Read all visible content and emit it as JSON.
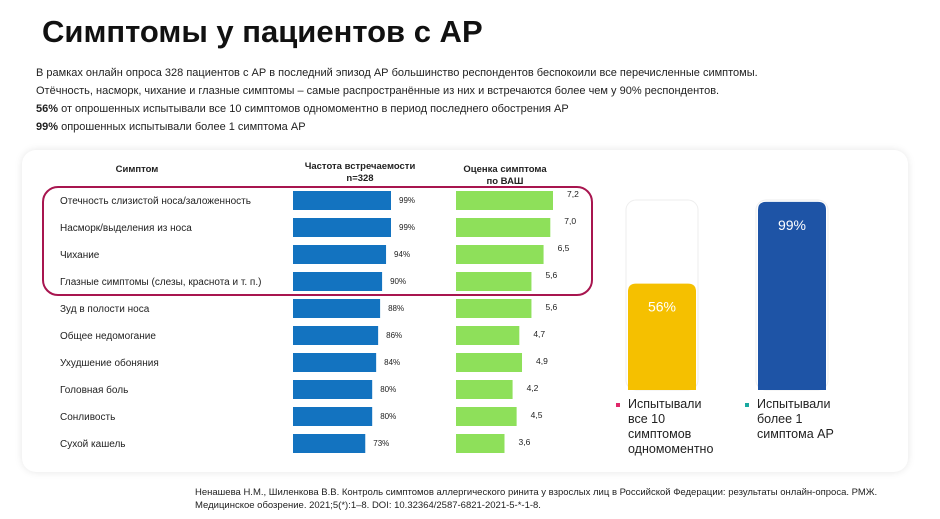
{
  "title": "Симптомы у пациентов с АР",
  "intro": {
    "line1": "В рамках онлайн опроса 328 пациентов с АР в  последний эпизод АР большинство респондентов беспокоили все перечисленные симптомы.",
    "line2": "Отёчность, насморк, чихание  и глазные симптомы – самые распространённые из них и встречаются более чем у 90% респондентов.",
    "line3_bold": "56%",
    "line3": " от опрошенных испытывали все 10 симптомов одномоментно в период последнего обострения АР",
    "line4_bold": "99%",
    "line4": " опрошенных испытывали более 1 симптома АР"
  },
  "colors": {
    "freq_bar": "#1373c0",
    "vas_bar": "#8ee05a",
    "highlight_border": "#a8154f",
    "yellow": "#f5c000",
    "navy": "#1e54a6",
    "legend_pink": "#e0276a",
    "legend_teal": "#1aa9a0"
  },
  "chart_data": [
    {
      "type": "table",
      "headers": {
        "symptom": "Симптом",
        "frequency": "Частота встречаемости",
        "frequency_sub": "n=328",
        "vas": "Оценка симптома",
        "vas_sub": "по ВАШ"
      },
      "categories": [
        "Отечность слизистой носа/заложенность",
        "Насморк/выделения из носа",
        "Чихание",
        "Глазные симптомы (слезы, краснота и т. п.)",
        "Зуд в полости носа",
        "Общее недомогание",
        "Ухудшение обоняния",
        "Головная боль",
        "Сонливость",
        "Сухой кашель"
      ],
      "series": [
        {
          "name": "Частота встречаемости",
          "values": [
            99,
            99,
            94,
            90,
            88,
            86,
            84,
            80,
            80,
            73
          ],
          "labels": [
            "99%",
            "99%",
            "94%",
            "90%",
            "88%",
            "86%",
            "84%",
            "80%",
            "80%",
            "73%"
          ]
        },
        {
          "name": "Оценка симптома по ВАШ",
          "values": [
            7.2,
            7.0,
            6.5,
            5.6,
            5.6,
            4.7,
            4.9,
            4.2,
            4.5,
            3.6
          ],
          "labels": [
            "7,2",
            "7,0",
            "6,5",
            "5,6",
            "5,6",
            "4,7",
            "4,9",
            "4,2",
            "4,5",
            "3,6"
          ]
        }
      ],
      "highlighted_rows": [
        0,
        1,
        2,
        3
      ]
    },
    {
      "type": "bar",
      "ylim": [
        0,
        100
      ],
      "categories": [
        "Испытывали все 10 симптомов одномоментно",
        "Испытывали более 1 симптома АР"
      ],
      "values": [
        56,
        99
      ],
      "labels": [
        "56%",
        "99%"
      ]
    }
  ],
  "legend": {
    "left": [
      "Испытывали",
      "все 10",
      "симптомов",
      "одномоментно"
    ],
    "right": [
      "Испытывали",
      "более 1",
      "симптома АР"
    ]
  },
  "citation": {
    "line1": "Ненашева Н.М., Шиленкова В.В. Контроль симптомов аллергического ринита у взрослых лиц в Российской Федерации: результаты онлайн-опроса. РМЖ.",
    "line2": "Медицинское обозрение. 2021;5(*):1–8. DOI: 10.32364/2587-6821-2021-5-*-1-8."
  }
}
